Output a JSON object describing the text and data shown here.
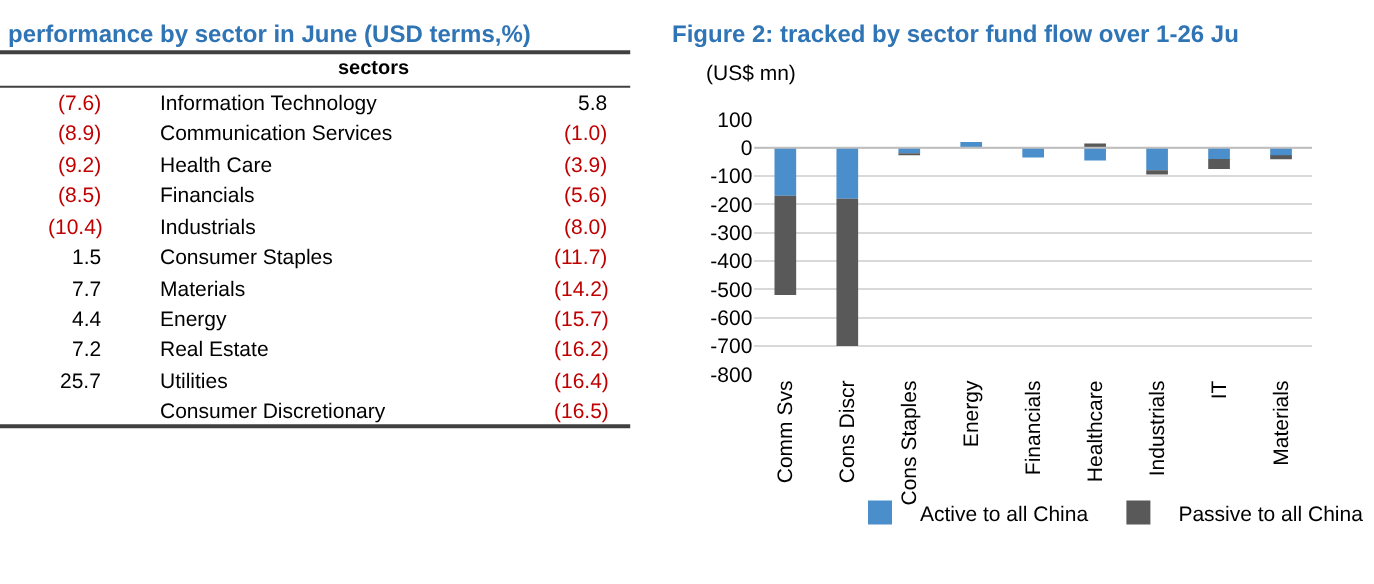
{
  "chart_data": [
    {
      "type": "other",
      "title": "performance by sector in June (USD terms,%)",
      "annotations": [
        "sectors"
      ],
      "categories": [
        "Information Technology",
        "Communication Services",
        "Health Care",
        "Financials",
        "Industrials",
        "Consumer Staples",
        "Materials",
        "Energy",
        "Real Estate",
        "Utilities",
        "Consumer Discretionary"
      ],
      "series": [
        {
          "values": [
            -7.6,
            -8.9,
            -9.2,
            -8.5,
            -10.4,
            1.5,
            7.7,
            4.4,
            7.2,
            25.7,
            null
          ],
          "value_labels": [
            "(7.6)",
            "(8.9)",
            "(9.2)",
            "(8.5)",
            "(10.4)",
            "1.5",
            "7.7",
            "4.4",
            "7.2",
            "25.7",
            null
          ],
          "colors": [
            "#c00000",
            "#c00000",
            "#c00000",
            "#c00000",
            "#c00000",
            "#000000",
            "#000000",
            "#000000",
            "#000000",
            "#000000",
            null
          ]
        },
        {
          "values": [
            5.8,
            -1.0,
            -3.9,
            -5.6,
            -8.0,
            -11.7,
            -14.2,
            -15.7,
            -16.2,
            -16.4,
            -16.5
          ],
          "value_labels": [
            "5.8",
            "(1.0)",
            "(3.9)",
            "(5.6)",
            "(8.0)",
            "(11.7)",
            "(14.2)",
            "(15.7)",
            "(16.2)",
            "(16.4)",
            "(16.5)"
          ],
          "colors": [
            "#000000",
            "#c00000",
            "#c00000",
            "#c00000",
            "#c00000",
            "#c00000",
            "#c00000",
            "#c00000",
            "#c00000",
            "#c00000",
            "#c00000"
          ]
        }
      ]
    },
    {
      "type": "bar",
      "title": "Figure 2: tracked by sector fund flow over 1-26 Ju",
      "ylabel": "(US$ mn)",
      "stacked": true,
      "categories": [
        "Comm Svs",
        "Cons Discr",
        "Cons Staples",
        "Energy",
        "Financials",
        "Healthcare",
        "Industrials",
        "IT",
        "Materials"
      ],
      "series": [
        {
          "name": "Active to all China",
          "color": "#4a8fcb",
          "values": [
            -170,
            -180,
            -20,
            20,
            -35,
            -45,
            -80,
            -40,
            -30
          ]
        },
        {
          "name": "Passive to all China",
          "color": "#595959",
          "values": [
            -350,
            -520,
            -5,
            null,
            null,
            15,
            -15,
            -35,
            -5
          ]
        }
      ],
      "ylim": [
        -800,
        100
      ],
      "yticks": [
        -800,
        -700,
        -600,
        -500,
        -400,
        -300,
        -200,
        -100,
        0,
        100
      ],
      "grid": "y",
      "legend": "bottom"
    }
  ]
}
